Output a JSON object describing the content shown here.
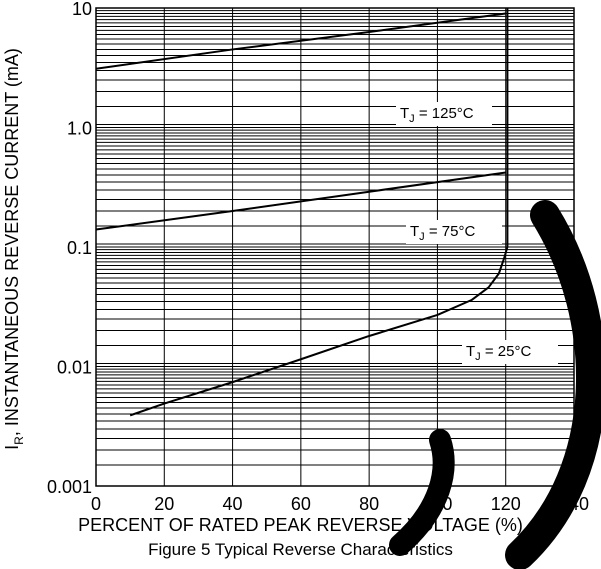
{
  "chart_data": {
    "type": "line",
    "title": "Figure 5  Typical Reverse Characteristics",
    "xlabel": "PERCENT OF RATED PEAK REVERSE VOLTAGE (%)",
    "ylabel_main": "I",
    "ylabel_sub": "R",
    "ylabel_rest": ", INSTANTANEOUS REVERSE CURRENT (mA)",
    "x_scale": "linear",
    "y_scale": "log",
    "xlim": [
      0,
      140
    ],
    "ylim": [
      0.001,
      10
    ],
    "grid": true,
    "x_ticks": [
      0,
      20,
      40,
      60,
      80,
      100,
      120,
      140
    ],
    "x_tick_labels": [
      "0",
      "20",
      "40",
      "60",
      "80",
      "100",
      "120",
      "140"
    ],
    "y_ticks": [
      0.001,
      0.01,
      0.1,
      1.0,
      10
    ],
    "y_tick_labels": [
      "0.001",
      "0.01",
      "0.1",
      "1.0",
      "10"
    ],
    "series": [
      {
        "name": "T_J = 125°C",
        "label_main": "T",
        "label_sub": "J",
        "label_rest": " = 125°C",
        "x": [
          0,
          40,
          80,
          120
        ],
        "y": [
          3.1,
          4.5,
          6.3,
          9.0
        ]
      },
      {
        "name": "T_J = 75°C",
        "label_main": "T",
        "label_sub": "J",
        "label_rest": " = 75°C",
        "x": [
          0,
          40,
          80,
          120
        ],
        "y": [
          0.14,
          0.2,
          0.29,
          0.42
        ]
      },
      {
        "name": "T_J = 25°C",
        "label_main": "T",
        "label_sub": "J",
        "label_rest": " = 25°C",
        "x": [
          10,
          20,
          40,
          60,
          80,
          100,
          110,
          115,
          118,
          119.5,
          120.5,
          120.5,
          120.5
        ],
        "y": [
          0.0039,
          0.0049,
          0.0074,
          0.0115,
          0.018,
          0.027,
          0.036,
          0.046,
          0.06,
          0.08,
          0.1,
          1.0,
          10
        ]
      }
    ]
  }
}
